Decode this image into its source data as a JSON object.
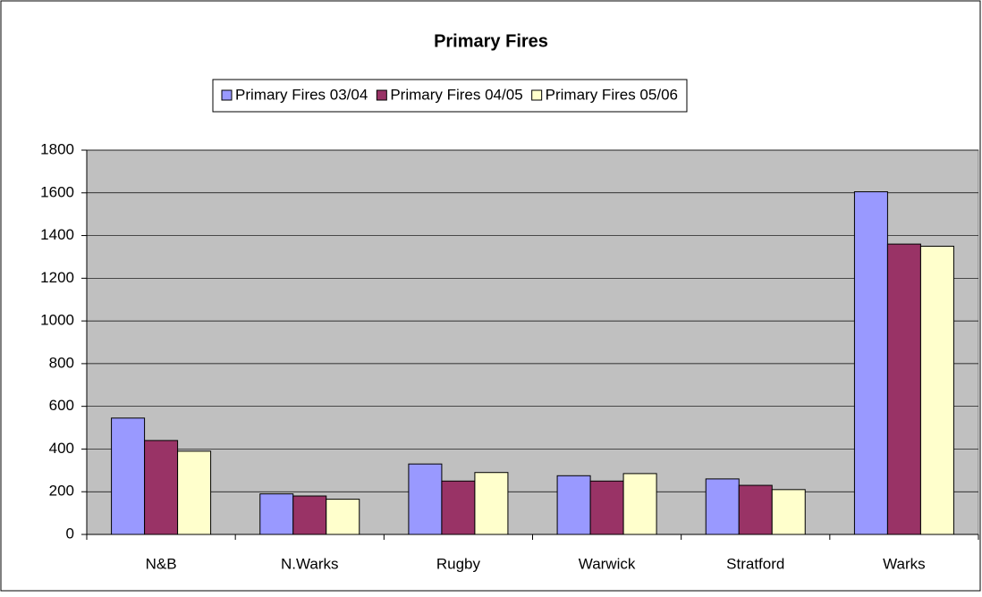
{
  "chart_data": {
    "type": "bar",
    "title": "Primary Fires",
    "categories": [
      "N&B",
      "N.Warks",
      "Rugby",
      "Warwick",
      "Stratford",
      "Warks"
    ],
    "series": [
      {
        "name": "Primary Fires 03/04",
        "color": "#9999ff",
        "values": [
          545,
          190,
          330,
          275,
          260,
          1605
        ]
      },
      {
        "name": "Primary Fires 04/05",
        "color": "#993366",
        "values": [
          440,
          180,
          250,
          250,
          230,
          1360
        ]
      },
      {
        "name": "Primary Fires 05/06",
        "color": "#ffffcc",
        "values": [
          390,
          165,
          290,
          285,
          210,
          1350
        ]
      }
    ],
    "ylim": [
      0,
      1800
    ],
    "yticks": [
      0,
      200,
      400,
      600,
      800,
      1000,
      1200,
      1400,
      1600,
      1800
    ],
    "grid": true,
    "legend": "top",
    "plot_background": "#c0c0c0"
  }
}
